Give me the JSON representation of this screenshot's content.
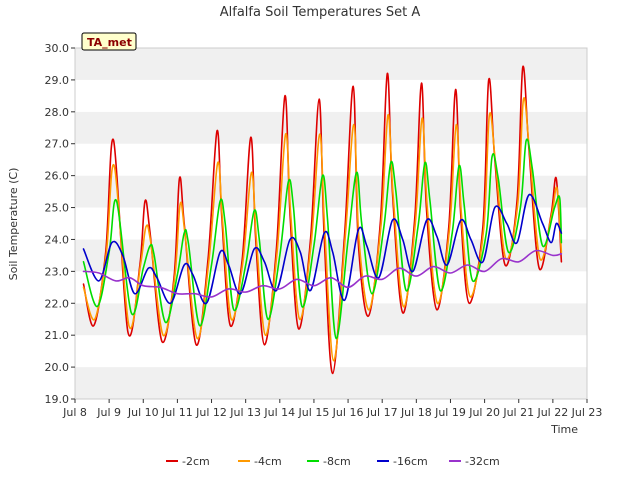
{
  "chart_data": {
    "type": "line",
    "title": "Alfalfa Soil Temperatures Set A",
    "xlabel": "Time",
    "ylabel": "Soil Temperature (C)",
    "badge": "TA_met",
    "xlim": [
      8,
      23
    ],
    "ylim": [
      19.0,
      30.0
    ],
    "x_ticks": [
      {
        "x": 8,
        "label": "Jul 8"
      },
      {
        "x": 9,
        "label": "Jul 9"
      },
      {
        "x": 10,
        "label": "Jul 10"
      },
      {
        "x": 11,
        "label": "Jul 11"
      },
      {
        "x": 12,
        "label": "Jul 12"
      },
      {
        "x": 13,
        "label": "Jul 13"
      },
      {
        "x": 14,
        "label": "Jul 14"
      },
      {
        "x": 15,
        "label": "Jul 15"
      },
      {
        "x": 16,
        "label": "Jul 16"
      },
      {
        "x": 17,
        "label": "Jul 17"
      },
      {
        "x": 18,
        "label": "Jul 18"
      },
      {
        "x": 19,
        "label": "Jul 19"
      },
      {
        "x": 20,
        "label": "Jul 20"
      },
      {
        "x": 21,
        "label": "Jul 21"
      },
      {
        "x": 22,
        "label": "Jul 22"
      },
      {
        "x": 23,
        "label": "Jul 23"
      }
    ],
    "y_ticks": [
      {
        "y": 19,
        "label": "19.0"
      },
      {
        "y": 20,
        "label": "20.0"
      },
      {
        "y": 21,
        "label": "21.0"
      },
      {
        "y": 22,
        "label": "22.0"
      },
      {
        "y": 23,
        "label": "23.0"
      },
      {
        "y": 24,
        "label": "24.0"
      },
      {
        "y": 25,
        "label": "25.0"
      },
      {
        "y": 26,
        "label": "26.0"
      },
      {
        "y": 27,
        "label": "27.0"
      },
      {
        "y": 28,
        "label": "28.0"
      },
      {
        "y": 29,
        "label": "29.0"
      },
      {
        "y": 30,
        "label": "30.0"
      }
    ],
    "grid": "alternating horizontal bands",
    "legend_position": "bottom",
    "series": [
      {
        "name": "-2cm",
        "color": "#dd0000",
        "x": [
          8.25,
          8.55,
          8.9,
          9.13,
          9.55,
          9.9,
          10.05,
          10.2,
          10.55,
          10.9,
          11.06,
          11.2,
          11.55,
          11.9,
          12.16,
          12.3,
          12.55,
          12.9,
          13.15,
          13.3,
          13.55,
          13.9,
          14.15,
          14.3,
          14.55,
          14.9,
          15.15,
          15.3,
          15.55,
          15.9,
          16.15,
          16.3,
          16.6,
          16.95,
          17.15,
          17.3,
          17.6,
          17.95,
          18.15,
          18.3,
          18.6,
          18.95,
          19.15,
          19.3,
          19.55,
          19.95,
          20.12,
          20.3,
          20.6,
          20.95,
          21.12,
          21.3,
          21.6,
          21.95,
          22.1,
          22.25
        ],
        "y": [
          22.6,
          21.3,
          23.6,
          27.1,
          21.1,
          23.2,
          25.2,
          24.2,
          20.8,
          22.8,
          25.9,
          24.5,
          20.7,
          23.4,
          27.4,
          24.7,
          21.3,
          23.4,
          27.2,
          23.9,
          20.7,
          23.7,
          28.5,
          24.8,
          21.2,
          24.0,
          28.4,
          24.1,
          19.8,
          24.2,
          28.8,
          23.9,
          21.6,
          24.6,
          29.2,
          25.5,
          21.7,
          24.6,
          28.9,
          24.9,
          21.8,
          24.4,
          28.7,
          24.8,
          22.0,
          24.4,
          29.0,
          26.5,
          23.2,
          25.2,
          29.4,
          26.8,
          23.1,
          24.8,
          25.9,
          23.3
        ]
      },
      {
        "name": "-4cm",
        "color": "#ff9900",
        "x": [
          8.25,
          8.58,
          8.92,
          9.15,
          9.58,
          9.92,
          10.08,
          10.22,
          10.58,
          10.92,
          11.08,
          11.22,
          11.58,
          11.92,
          12.18,
          12.32,
          12.58,
          12.92,
          13.17,
          13.32,
          13.58,
          13.92,
          14.17,
          14.32,
          14.58,
          14.92,
          15.17,
          15.32,
          15.58,
          15.92,
          16.17,
          16.32,
          16.62,
          16.97,
          17.17,
          17.32,
          17.62,
          17.97,
          18.17,
          18.32,
          18.62,
          18.97,
          19.17,
          19.32,
          19.58,
          19.97,
          20.14,
          20.32,
          20.62,
          20.97,
          21.14,
          21.32,
          21.62,
          21.97,
          22.12,
          22.25
        ],
        "y": [
          22.5,
          21.5,
          23.6,
          26.3,
          21.3,
          23.2,
          24.4,
          23.9,
          21.0,
          22.8,
          25.1,
          24.2,
          20.9,
          23.3,
          26.4,
          24.6,
          21.5,
          23.3,
          26.1,
          23.9,
          21.0,
          23.6,
          27.3,
          24.8,
          21.5,
          23.9,
          27.3,
          24.2,
          20.2,
          24.1,
          27.6,
          24.0,
          21.8,
          24.5,
          27.9,
          25.4,
          21.9,
          24.5,
          27.8,
          25.0,
          22.0,
          24.3,
          27.6,
          24.8,
          22.2,
          24.3,
          27.9,
          26.4,
          23.4,
          25.1,
          28.4,
          26.7,
          23.4,
          24.8,
          25.6,
          23.6
        ]
      },
      {
        "name": "-8cm",
        "color": "#00dd00",
        "x": [
          8.25,
          8.65,
          9.0,
          9.22,
          9.65,
          10.0,
          10.2,
          10.32,
          10.65,
          11.0,
          11.2,
          11.32,
          11.65,
          12.0,
          12.25,
          12.4,
          12.65,
          13.0,
          13.25,
          13.4,
          13.65,
          14.0,
          14.25,
          14.4,
          14.65,
          15.0,
          15.25,
          15.4,
          15.65,
          16.0,
          16.25,
          16.4,
          16.7,
          17.05,
          17.25,
          17.4,
          17.7,
          18.05,
          18.25,
          18.4,
          18.7,
          19.05,
          19.25,
          19.4,
          19.65,
          20.05,
          20.22,
          20.4,
          20.7,
          21.05,
          21.22,
          21.4,
          21.7,
          22.05,
          22.2,
          22.25
        ],
        "y": [
          23.3,
          21.9,
          23.6,
          25.2,
          21.7,
          23.1,
          23.8,
          23.5,
          21.4,
          22.9,
          24.2,
          23.9,
          21.3,
          23.2,
          25.2,
          24.5,
          21.8,
          23.2,
          24.9,
          24.0,
          21.5,
          23.5,
          25.8,
          25.0,
          21.9,
          23.8,
          26.0,
          24.6,
          20.9,
          24.0,
          26.1,
          24.5,
          22.3,
          24.4,
          26.4,
          25.5,
          22.4,
          24.4,
          26.4,
          25.2,
          22.4,
          24.2,
          26.3,
          25.1,
          22.7,
          24.2,
          26.6,
          25.9,
          23.6,
          25.0,
          27.1,
          26.2,
          23.8,
          25.0,
          25.3,
          23.9
        ]
      },
      {
        "name": "-16cm",
        "color": "#0000cc",
        "x": [
          8.25,
          8.7,
          9.08,
          9.4,
          9.75,
          10.15,
          10.4,
          10.8,
          11.2,
          11.45,
          11.85,
          12.25,
          12.5,
          12.85,
          13.25,
          13.55,
          13.9,
          14.3,
          14.6,
          14.9,
          15.3,
          15.55,
          15.9,
          16.3,
          16.55,
          16.9,
          17.3,
          17.6,
          17.9,
          18.3,
          18.6,
          18.9,
          19.3,
          19.6,
          19.95,
          20.3,
          20.65,
          20.95,
          21.3,
          21.7,
          21.95,
          22.1,
          22.25
        ],
        "y": [
          23.7,
          22.7,
          23.9,
          23.5,
          22.3,
          23.1,
          22.8,
          22.0,
          23.2,
          22.9,
          22.0,
          23.6,
          23.2,
          22.3,
          23.7,
          23.3,
          22.4,
          24.0,
          23.6,
          22.4,
          24.2,
          23.6,
          22.1,
          24.3,
          23.8,
          22.8,
          24.6,
          24.0,
          23.0,
          24.6,
          24.1,
          23.2,
          24.6,
          24.0,
          23.3,
          25.0,
          24.5,
          23.9,
          25.4,
          24.5,
          23.9,
          24.5,
          24.2
        ]
      },
      {
        "name": "-32cm",
        "color": "#9933cc",
        "x": [
          8.25,
          8.7,
          9.2,
          9.6,
          10.0,
          10.5,
          11.0,
          11.5,
          12.0,
          12.5,
          13.0,
          13.5,
          14.0,
          14.5,
          15.0,
          15.5,
          16.0,
          16.5,
          17.0,
          17.5,
          18.0,
          18.5,
          19.0,
          19.5,
          20.0,
          20.5,
          21.0,
          21.5,
          22.0,
          22.25
        ],
        "y": [
          23.0,
          22.95,
          22.7,
          22.8,
          22.55,
          22.5,
          22.3,
          22.3,
          22.2,
          22.45,
          22.35,
          22.55,
          22.45,
          22.75,
          22.55,
          22.8,
          22.5,
          22.85,
          22.75,
          23.1,
          22.85,
          23.15,
          22.95,
          23.2,
          23.0,
          23.4,
          23.3,
          23.65,
          23.5,
          23.55
        ]
      }
    ]
  }
}
